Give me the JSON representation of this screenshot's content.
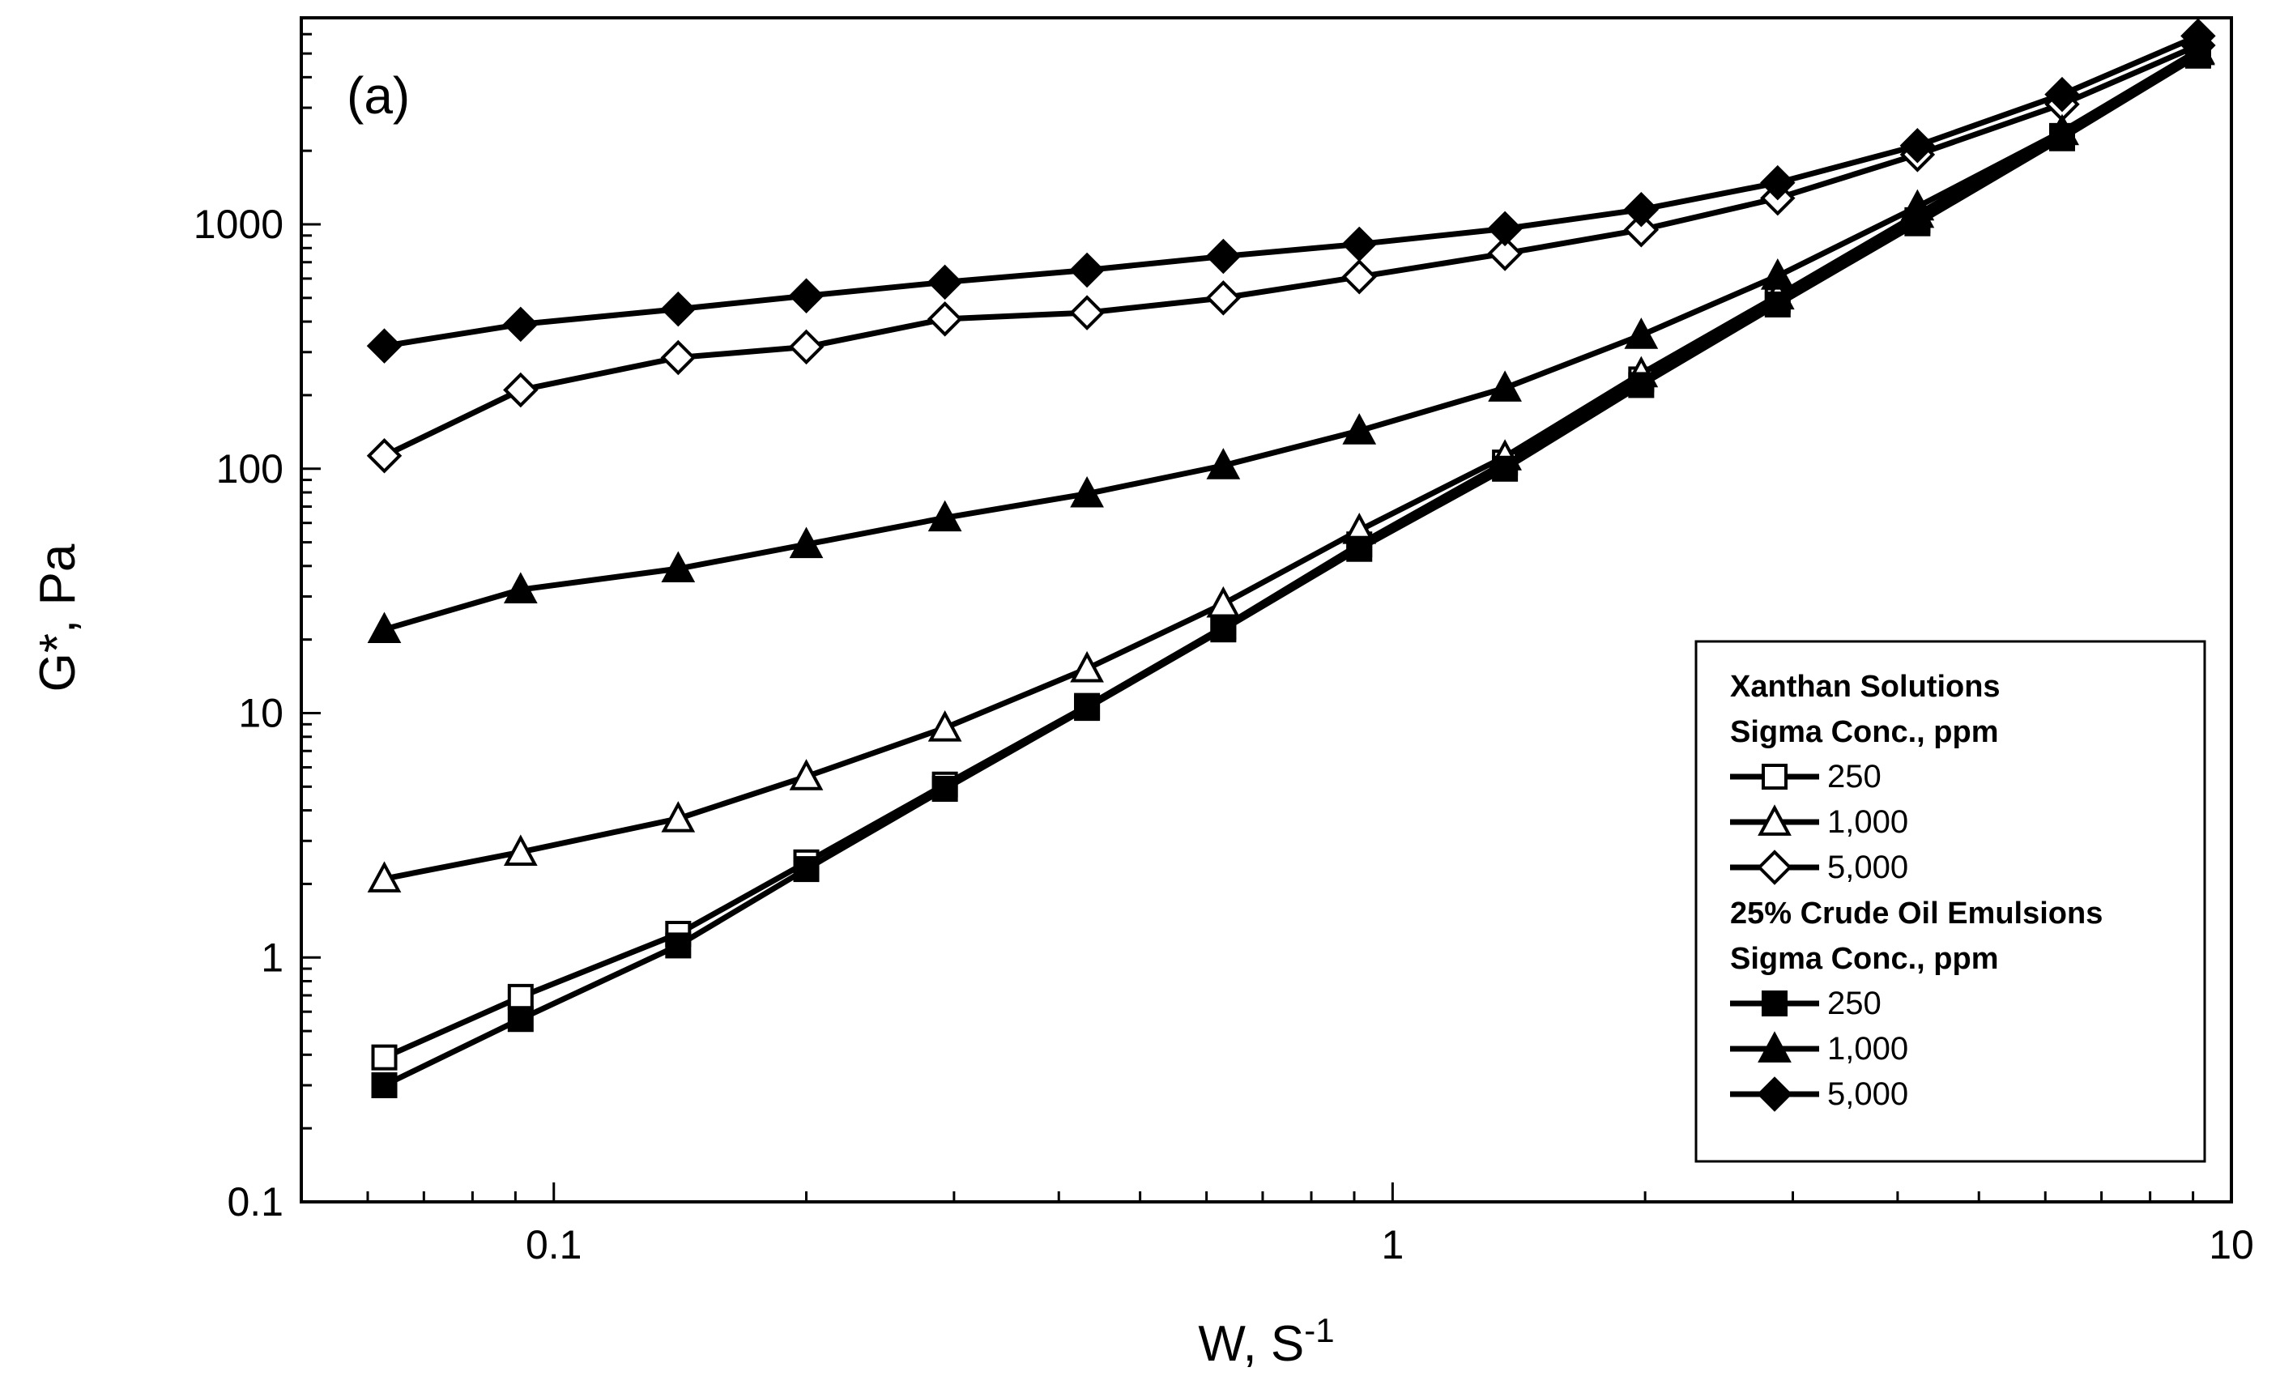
{
  "chart_data": {
    "type": "line",
    "panel_label": "(a)",
    "title": "",
    "xlabel": "W, S",
    "xlabel_superscript": "-1",
    "ylabel": "G*, Pa",
    "x_scale": "log",
    "y_scale": "log",
    "xlim": [
      0.05,
      10
    ],
    "ylim": [
      0.1,
      7000
    ],
    "x_ticks": [
      0.1,
      1,
      10
    ],
    "x_tick_labels": [
      "0.1",
      "1",
      "10"
    ],
    "y_ticks": [
      0.1,
      1,
      10,
      100,
      1000
    ],
    "y_tick_labels": [
      "0.1",
      "1",
      "10",
      "100",
      "1000"
    ],
    "grid": false,
    "legend_position": "bottom-right",
    "x": [
      0.0628,
      0.0913,
      0.1407,
      0.2,
      0.2926,
      0.4322,
      0.6283,
      0.9126,
      1.3613,
      1.9788,
      2.8778,
      4.2238,
      6.2832,
      9.1264
    ],
    "legend_groups": [
      {
        "heading": [
          "Xanthan Solutions",
          "Sigma Conc., ppm"
        ],
        "series_indices": [
          0,
          1,
          2
        ]
      },
      {
        "heading": [
          "25% Crude Oil Emulsions",
          "Sigma Conc., ppm"
        ],
        "series_indices": [
          3,
          4,
          5
        ]
      }
    ],
    "series": [
      {
        "name": "250",
        "group": "Xanthan Solutions",
        "marker": "square",
        "filled": false,
        "values": [
          0.39,
          0.69,
          1.25,
          2.45,
          5.1,
          10.7,
          22.5,
          49,
          106,
          232,
          490,
          1040,
          2300,
          4950
        ]
      },
      {
        "name": "1,000",
        "group": "Xanthan Solutions",
        "marker": "triangle",
        "filled": false,
        "values": [
          2.1,
          2.7,
          3.7,
          5.5,
          8.7,
          15.2,
          28,
          56,
          112,
          245,
          510,
          1100,
          2400,
          5100
        ]
      },
      {
        "name": "5,000",
        "group": "Xanthan Solutions",
        "marker": "diamond",
        "filled": false,
        "values": [
          113,
          210,
          285,
          315,
          410,
          435,
          500,
          610,
          760,
          950,
          1280,
          1930,
          3100,
          5400
        ]
      },
      {
        "name": "250",
        "group": "25% Crude Oil Emulsions",
        "marker": "square",
        "filled": true,
        "values": [
          0.3,
          0.56,
          1.12,
          2.3,
          4.9,
          10.5,
          22,
          47,
          100,
          220,
          470,
          1010,
          2250,
          4900
        ]
      },
      {
        "name": "1,000",
        "group": "25% Crude Oil Emulsions",
        "marker": "triangle",
        "filled": true,
        "values": [
          22,
          32,
          39,
          49,
          63,
          79,
          103,
          143,
          214,
          352,
          615,
          1180,
          2400,
          5150
        ]
      },
      {
        "name": "5,000",
        "group": "25% Crude Oil Emulsions",
        "marker": "diamond",
        "filled": true,
        "values": [
          318,
          390,
          450,
          510,
          580,
          650,
          740,
          830,
          960,
          1150,
          1480,
          2100,
          3400,
          5900
        ]
      }
    ]
  }
}
